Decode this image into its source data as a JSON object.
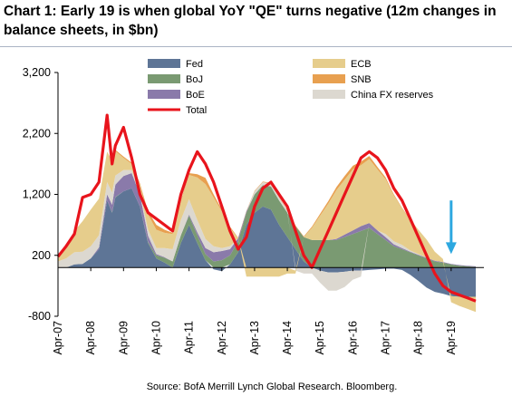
{
  "title": "Chart 1: Early 19 is when global YoY \"QE\" turns negative (12m changes in balance sheets, in $bn)",
  "source": "Source: BofA Merrill Lynch Global Research. Bloomberg.",
  "chart_data": {
    "type": "area",
    "title": "Chart 1: Early 19 is when global YoY \"QE\" turns negative (12m changes in balance sheets, in $bn)",
    "ylim": [
      -800,
      3200
    ],
    "yticks": [
      -800,
      200,
      1200,
      2200,
      3200
    ],
    "ytick_labels": [
      "-800",
      "200",
      "1,200",
      "2,200",
      "3,200"
    ],
    "xlim": [
      2007.25,
      2020.25
    ],
    "xticks": [
      2007.25,
      2008.25,
      2009.25,
      2010.25,
      2011.25,
      2012.25,
      2013.25,
      2014.25,
      2015.25,
      2016.25,
      2017.25,
      2018.25,
      2019.25
    ],
    "xtick_labels": [
      "Apr-07",
      "Apr-08",
      "Apr-09",
      "Apr-10",
      "Apr-11",
      "Apr-12",
      "Apr-13",
      "Apr-14",
      "Apr-15",
      "Apr-16",
      "Apr-17",
      "Apr-18",
      "Apr-19"
    ],
    "legend": "top",
    "grid": false,
    "x": [
      2007.25,
      2007.5,
      2007.75,
      2008.0,
      2008.25,
      2008.5,
      2008.75,
      2008.9,
      2009.0,
      2009.25,
      2009.5,
      2009.75,
      2010.0,
      2010.25,
      2010.5,
      2010.75,
      2011.0,
      2011.25,
      2011.5,
      2011.75,
      2012.0,
      2012.25,
      2012.5,
      2012.75,
      2013.0,
      2013.25,
      2013.5,
      2013.75,
      2014.0,
      2014.25,
      2014.5,
      2014.75,
      2015.0,
      2015.25,
      2015.5,
      2015.75,
      2016.0,
      2016.25,
      2016.5,
      2016.75,
      2017.0,
      2017.25,
      2017.5,
      2017.75,
      2018.0,
      2018.25,
      2018.5,
      2018.75,
      2019.0,
      2019.25,
      2019.5,
      2019.75,
      2020.0
    ],
    "series": [
      {
        "name": "Fed",
        "color": "#5e7596",
        "values": [
          0,
          0,
          50,
          60,
          150,
          300,
          1100,
          900,
          1150,
          1250,
          1300,
          1000,
          400,
          150,
          80,
          0,
          400,
          700,
          400,
          120,
          -30,
          -60,
          50,
          250,
          700,
          900,
          1000,
          950,
          700,
          500,
          300,
          100,
          0,
          -50,
          -80,
          -80,
          -70,
          -50,
          -50,
          -40,
          -30,
          -20,
          -20,
          -40,
          -120,
          -220,
          -330,
          -400,
          -430,
          -470,
          -480,
          -480,
          -480
        ]
      },
      {
        "name": "BoJ",
        "color": "#7a9a72",
        "values": [
          0,
          0,
          0,
          0,
          0,
          0,
          0,
          10,
          10,
          0,
          0,
          0,
          20,
          50,
          80,
          100,
          130,
          150,
          130,
          100,
          100,
          120,
          150,
          180,
          200,
          300,
          350,
          380,
          400,
          400,
          380,
          400,
          450,
          450,
          450,
          450,
          500,
          550,
          600,
          650,
          550,
          450,
          350,
          300,
          250,
          200,
          150,
          100,
          80,
          50,
          30,
          20,
          10
        ]
      },
      {
        "name": "BoE",
        "color": "#8a7aaa",
        "values": [
          0,
          0,
          0,
          0,
          0,
          30,
          100,
          120,
          200,
          250,
          250,
          200,
          100,
          20,
          10,
          0,
          0,
          20,
          50,
          100,
          150,
          150,
          100,
          50,
          20,
          0,
          0,
          0,
          0,
          0,
          0,
          0,
          0,
          0,
          0,
          20,
          40,
          60,
          80,
          80,
          60,
          50,
          30,
          20,
          10,
          10,
          10,
          10,
          10,
          10,
          10,
          10,
          10
        ]
      },
      {
        "name": "China FX reserves",
        "color": "#dcd8d0",
        "values": [
          100,
          150,
          200,
          200,
          200,
          200,
          200,
          200,
          150,
          100,
          50,
          50,
          100,
          100,
          150,
          200,
          250,
          250,
          200,
          150,
          100,
          50,
          50,
          0,
          0,
          50,
          50,
          50,
          50,
          30,
          -50,
          -100,
          -100,
          -200,
          -300,
          -300,
          -250,
          -150,
          -100,
          0,
          0,
          50,
          50,
          50,
          20,
          10,
          0,
          0,
          0,
          0,
          0,
          0,
          0
        ]
      },
      {
        "name": "ECB",
        "color": "#e6cd8c",
        "values": [
          80,
          200,
          350,
          500,
          600,
          600,
          500,
          500,
          400,
          200,
          100,
          100,
          250,
          300,
          250,
          250,
          300,
          400,
          700,
          900,
          800,
          600,
          300,
          0,
          -150,
          -150,
          -150,
          -150,
          -150,
          -100,
          -50,
          0,
          200,
          400,
          600,
          800,
          900,
          1000,
          1000,
          1050,
          1000,
          900,
          750,
          600,
          500,
          400,
          300,
          150,
          50,
          -100,
          -150,
          -200,
          -250
        ]
      },
      {
        "name": "SNB",
        "color": "#e8a050",
        "values": [
          0,
          0,
          0,
          0,
          0,
          0,
          0,
          20,
          20,
          20,
          20,
          30,
          50,
          80,
          50,
          20,
          20,
          30,
          50,
          100,
          50,
          30,
          20,
          10,
          10,
          10,
          10,
          10,
          10,
          10,
          10,
          10,
          20,
          30,
          40,
          50,
          60,
          60,
          60,
          50,
          40,
          30,
          20,
          10,
          10,
          0,
          0,
          0,
          0,
          0,
          0,
          0,
          0
        ]
      }
    ],
    "total": {
      "name": "Total",
      "color": "#e8141c",
      "values": [
        180,
        350,
        550,
        1150,
        1200,
        1400,
        2500,
        1700,
        2000,
        2300,
        1800,
        1200,
        900,
        800,
        700,
        600,
        1200,
        1600,
        1900,
        1700,
        1400,
        1000,
        600,
        300,
        500,
        1000,
        1300,
        1400,
        1200,
        1000,
        600,
        200,
        0,
        300,
        600,
        900,
        1200,
        1500,
        1800,
        1900,
        1800,
        1600,
        1300,
        1100,
        800,
        500,
        200,
        -100,
        -300,
        -400,
        -450,
        -500,
        -550
      ]
    },
    "annotations": [
      {
        "type": "arrow",
        "x": 2019.25,
        "y_from": 1100,
        "y_to": 250,
        "color": "#2da8e0"
      }
    ]
  }
}
